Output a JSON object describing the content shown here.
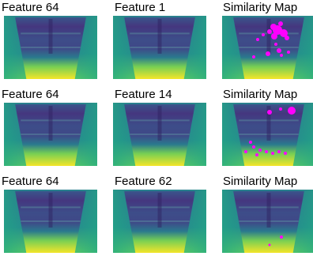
{
  "rows": [
    {
      "panels": [
        {
          "title": "Feature 64"
        },
        {
          "title": "Feature 1"
        },
        {
          "title": "Similarity Map"
        }
      ]
    },
    {
      "panels": [
        {
          "title": "Feature 64"
        },
        {
          "title": "Feature 14"
        },
        {
          "title": "Similarity Map"
        }
      ]
    },
    {
      "panels": [
        {
          "title": "Feature 64"
        },
        {
          "title": "Feature 62"
        },
        {
          "title": "Similarity Map"
        }
      ]
    }
  ]
}
